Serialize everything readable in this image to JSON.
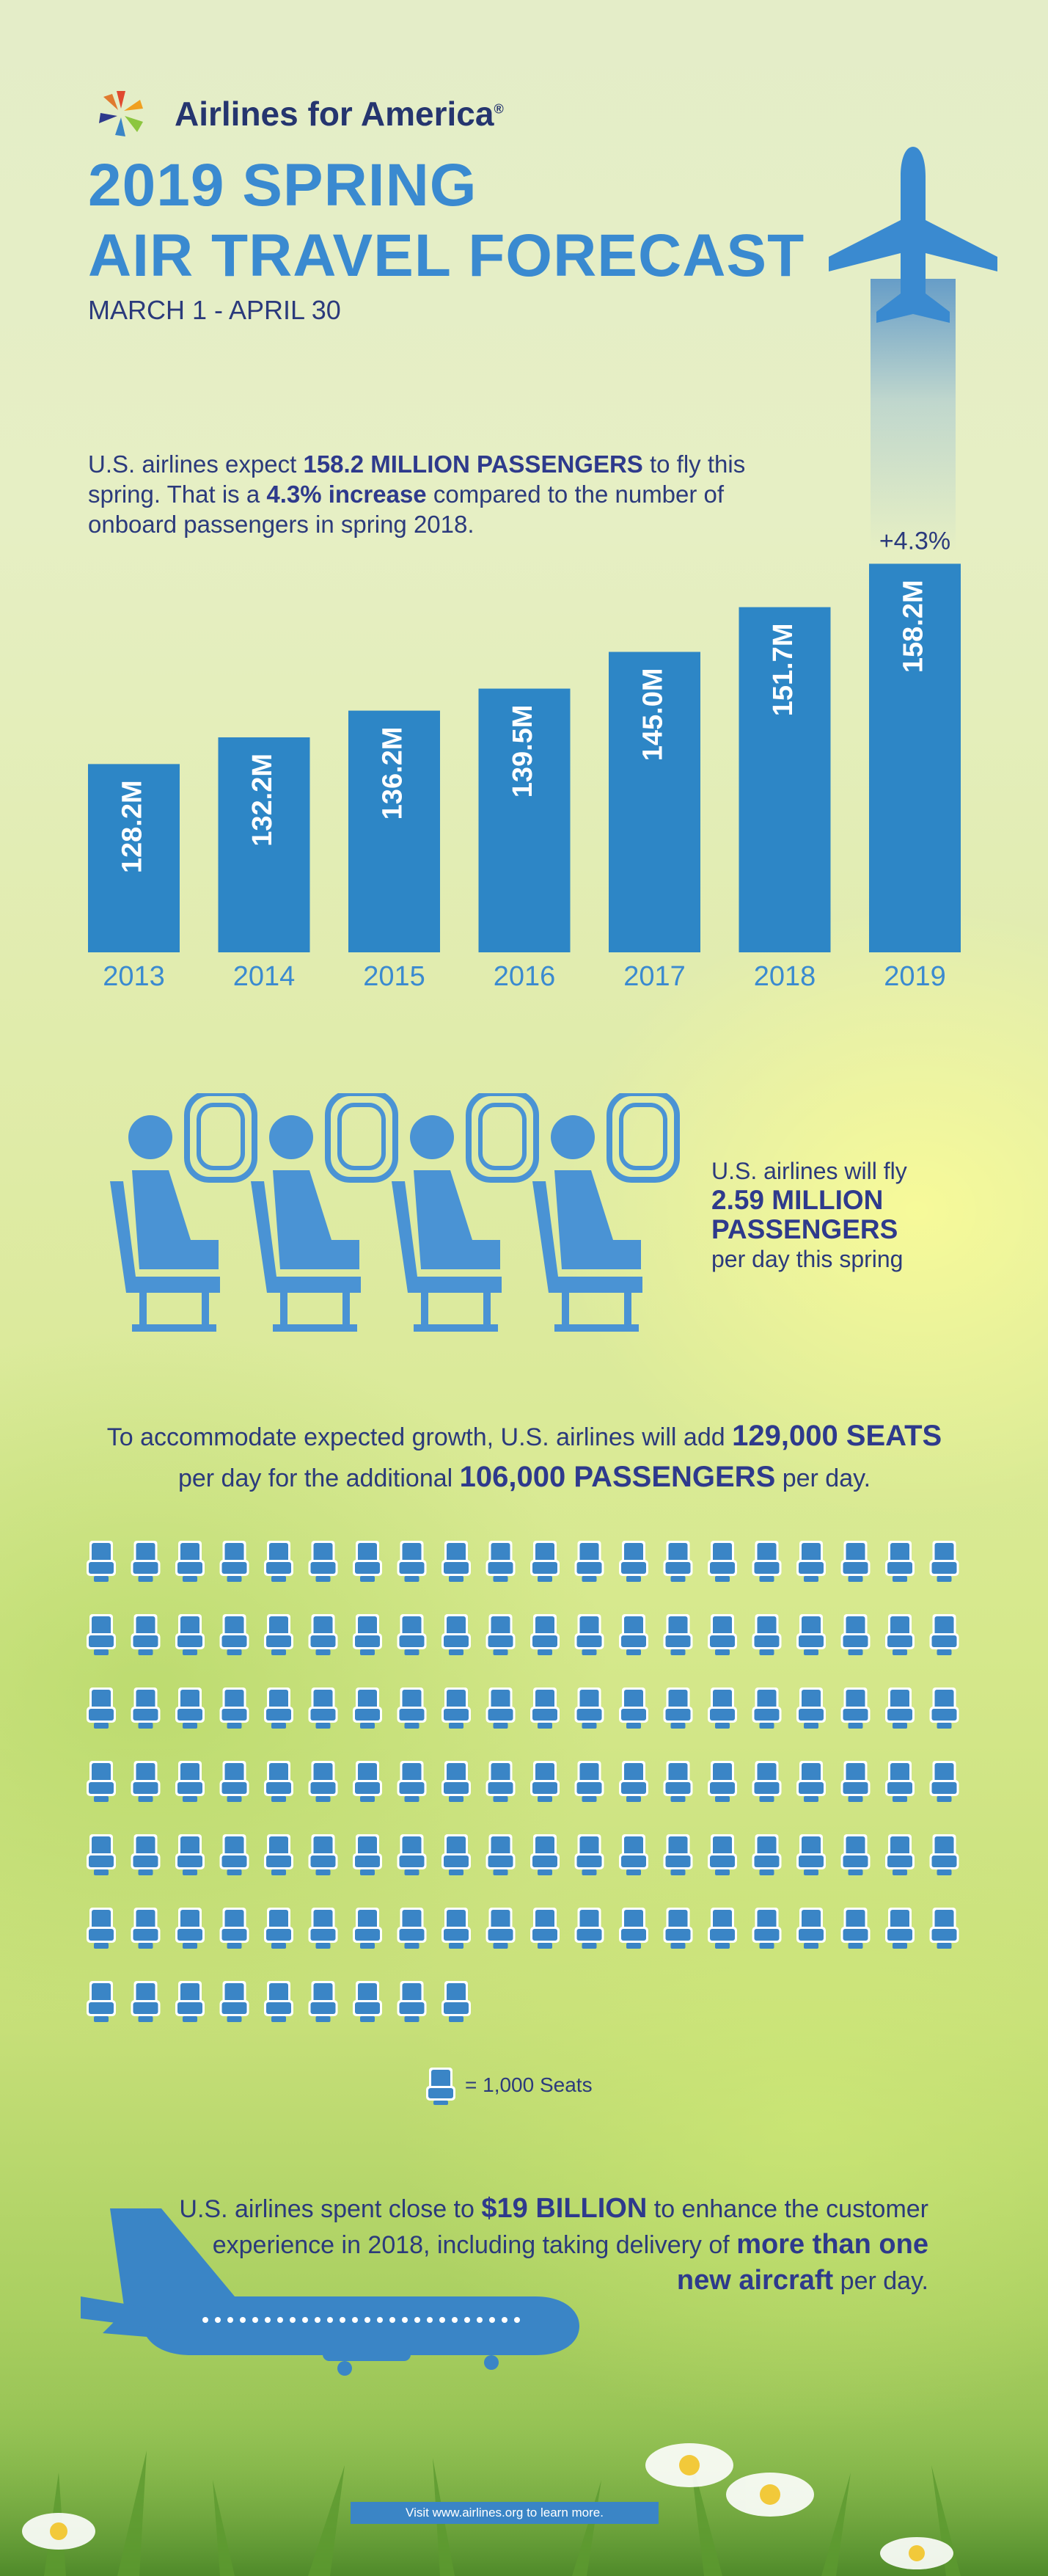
{
  "brand": {
    "name": "Airlines for America",
    "trademark": "®"
  },
  "title": {
    "line1": "2019 SPRING",
    "line2": "AIR TRAVEL FORECAST",
    "dates": "MARCH 1 - APRIL 30"
  },
  "intro": {
    "t1": "U.S. airlines expect ",
    "e1": "158.2 MILLION PASSENGERS",
    "t2": " to fly this spring. That is a ",
    "e2": "4.3% increase",
    "t3": " compared to the number of onboard passengers in spring 2018."
  },
  "chart_data": {
    "type": "bar",
    "categories": [
      "2013",
      "2014",
      "2015",
      "2016",
      "2017",
      "2018",
      "2019"
    ],
    "values": [
      128.2,
      132.2,
      136.2,
      139.5,
      145.0,
      151.7,
      158.2
    ],
    "value_labels": [
      "128.2M",
      "132.2M",
      "136.2M",
      "139.5M",
      "145.0M",
      "151.7M",
      "158.2M"
    ],
    "annotation": "+4.3%",
    "bar_color": "#2d86c6",
    "label_color": "#3a8ad0"
  },
  "perday": {
    "t1": "U.S. airlines will fly",
    "e1": "2.59 MILLION",
    "e2": "PASSENGERS",
    "t2": "per day this spring"
  },
  "growth": {
    "t1": "To accommodate expected growth, U.S. airlines will add ",
    "e1": "129,000 SEATS",
    "t2": "per day for the additional ",
    "e2": "106,000 PASSENGERS",
    "t3": " per day."
  },
  "seat_grid": {
    "count": 129,
    "per_row": 20,
    "icon": "airline-seat-icon",
    "legend": "= 1,000 Seats"
  },
  "spent": {
    "t1": "U.S. airlines spent close to ",
    "e1": "$19 BILLION",
    "t2": " to enhance the customer experience in 2018, including taking delivery of ",
    "e2": "more than one new aircraft",
    "t3": " per day."
  },
  "footer": {
    "visit": "Visit www.airlines.org to learn more."
  },
  "colors": {
    "accent": "#3a85c6",
    "navy": "#2e3a8c"
  }
}
